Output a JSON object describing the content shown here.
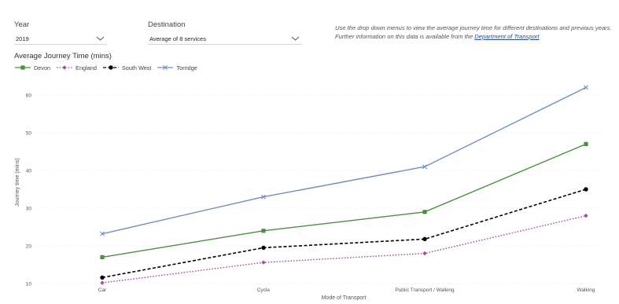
{
  "filters": {
    "year": {
      "label": "Year",
      "value": "2019"
    },
    "destination": {
      "label": "Destination",
      "value": "Average of 8 services"
    }
  },
  "info": {
    "text": "Use the drop down menus to view the average journey time for different destinations and previous years. Further information on this data is available from the ",
    "link_text": "Department of Transport"
  },
  "chart_data": {
    "type": "line",
    "title": "Average Journey Time (mins)",
    "xlabel": "Mode of Transport",
    "ylabel": "Journey time (mins)",
    "categories": [
      "Car",
      "Cycle",
      "Public Transport / Walking",
      "Walking"
    ],
    "ylim": [
      10,
      60
    ],
    "yticks": [
      10,
      20,
      30,
      40,
      50,
      60
    ],
    "grid": true,
    "legend_position": "top-left",
    "series": [
      {
        "name": "Devon",
        "values": [
          17,
          24,
          29,
          47
        ],
        "color": "#4a8f3f",
        "dash": "solid",
        "marker": "square"
      },
      {
        "name": "England",
        "values": [
          10.2,
          15.6,
          18,
          28
        ],
        "color": "#a0509c",
        "dash": "dotted",
        "marker": "diamond"
      },
      {
        "name": "South West",
        "values": [
          11.6,
          19.5,
          21.8,
          35
        ],
        "color": "#000000",
        "dash": "dashed",
        "marker": "circle"
      },
      {
        "name": "Torridge",
        "values": [
          23.2,
          33,
          41,
          62
        ],
        "color": "#6f8ebf",
        "dash": "solid",
        "marker": "x"
      }
    ]
  }
}
